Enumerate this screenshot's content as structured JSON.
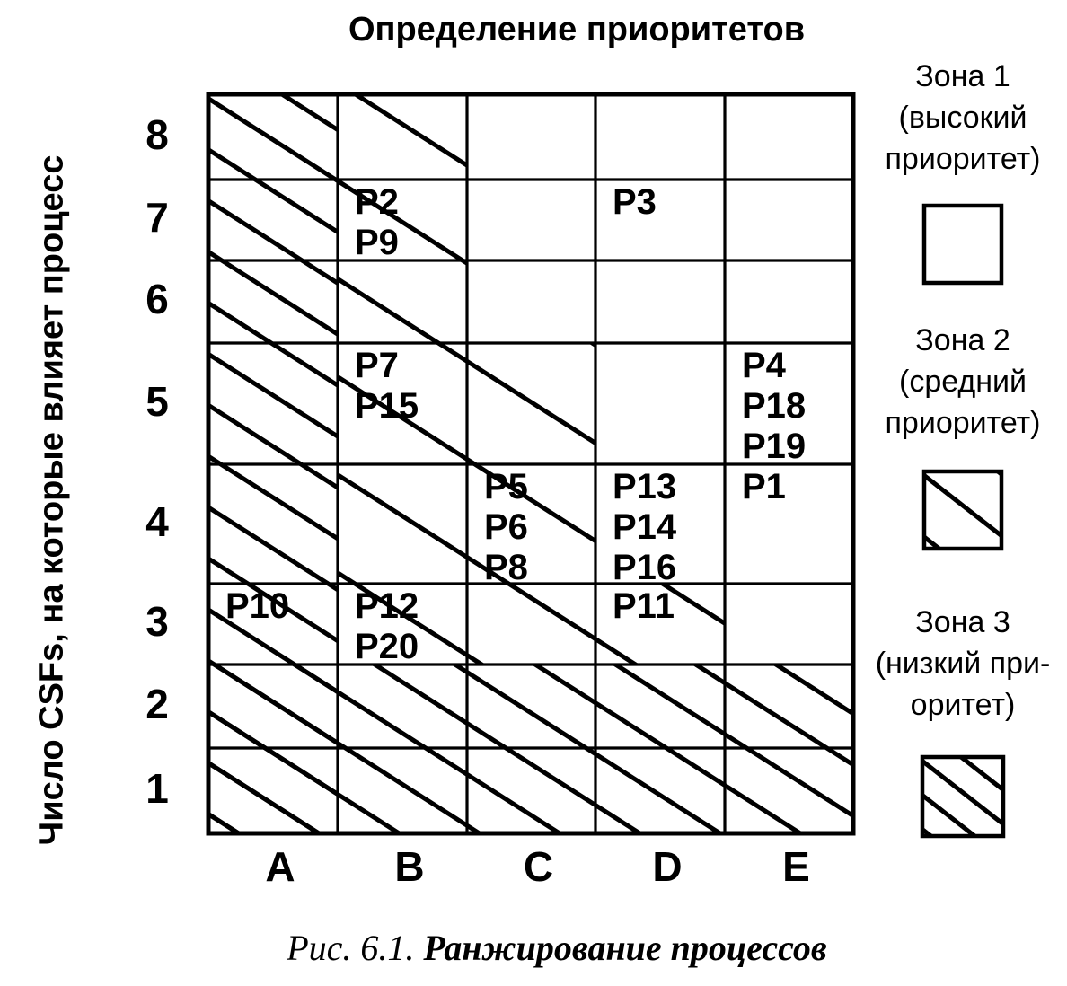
{
  "title": "Определение приоритетов",
  "y_axis": {
    "label": "Число CSFs, на которые влияет процесс",
    "ticks": [
      "8",
      "7",
      "6",
      "5",
      "4",
      "3",
      "2",
      "1"
    ]
  },
  "x_axis": {
    "ticks": [
      "A",
      "B",
      "C",
      "D",
      "E"
    ]
  },
  "legend": {
    "items": [
      {
        "name": "Зона 1",
        "line2": "(высокий",
        "line3": "приоритет)",
        "pattern": "none",
        "priority": "высокий приоритет"
      },
      {
        "name": "Зона 2",
        "line2": "(средний",
        "line3": "приоритет)",
        "pattern": "light-hatch",
        "priority": "средний приоритет"
      },
      {
        "name": "Зона 3",
        "line2": "(низкий при-",
        "line3": "оритет)",
        "pattern": "dense-hatch",
        "priority": "низкий приоритет"
      }
    ]
  },
  "caption": {
    "prefix": "Рис. 6.1.",
    "text": "Ранжирование процессов"
  },
  "colors": {
    "ink": "#000000",
    "paper": "#ffffff"
  },
  "chart_data": {
    "type": "heatmap",
    "title": "Определение приоритетов",
    "columns": [
      "A",
      "B",
      "C",
      "D",
      "E"
    ],
    "rows": [
      8,
      7,
      6,
      5,
      4,
      3,
      2,
      1
    ],
    "ylabel": "Число CSFs, на которые влияет процесс",
    "cells": [
      {
        "col": "B",
        "row": 7,
        "labels": [
          "P2",
          "P9"
        ]
      },
      {
        "col": "D",
        "row": 7,
        "labels": [
          "P3"
        ]
      },
      {
        "col": "B",
        "row": 5,
        "labels": [
          "P7",
          "P15"
        ]
      },
      {
        "col": "E",
        "row": 5,
        "labels": [
          "P4",
          "P18",
          "P19"
        ]
      },
      {
        "col": "C",
        "row": 4,
        "labels": [
          "P5",
          "P6",
          "P8"
        ]
      },
      {
        "col": "D",
        "row": 4,
        "labels": [
          "P13",
          "P14",
          "P16"
        ]
      },
      {
        "col": "E",
        "row": 4,
        "labels": [
          "P1"
        ]
      },
      {
        "col": "A",
        "row": 3,
        "labels": [
          "P10"
        ]
      },
      {
        "col": "B",
        "row": 3,
        "labels": [
          "P12",
          "P20"
        ]
      },
      {
        "col": "D",
        "row": 3,
        "labels": [
          "P11"
        ]
      }
    ],
    "zones": {
      "zone1": {
        "name": "Зона 1",
        "priority": "высокий приоритет",
        "pattern": "none",
        "regions": [
          {
            "c1": "C",
            "c2": "E",
            "r1": 6,
            "r2": 8
          },
          {
            "c1": "D",
            "c2": "E",
            "r1": 4,
            "r2": 5
          },
          {
            "c1": "E",
            "c2": "E",
            "r1": 3,
            "r2": 3
          }
        ]
      },
      "zone2": {
        "name": "Зона 2",
        "priority": "средний приоритет",
        "pattern": "light-hatch",
        "regions": [
          {
            "c1": "B",
            "c2": "B",
            "r1": 3,
            "r2": 8
          },
          {
            "c1": "C",
            "c2": "C",
            "r1": 3,
            "r2": 5
          },
          {
            "c1": "D",
            "c2": "D",
            "r1": 3,
            "r2": 3
          }
        ]
      },
      "zone3": {
        "name": "Зона 3",
        "priority": "низкий приоритет",
        "pattern": "dense-hatch",
        "regions": [
          {
            "c1": "A",
            "c2": "A",
            "r1": 1,
            "r2": 8
          },
          {
            "c1": "A",
            "c2": "E",
            "r1": 1,
            "r2": 2
          }
        ]
      }
    }
  }
}
